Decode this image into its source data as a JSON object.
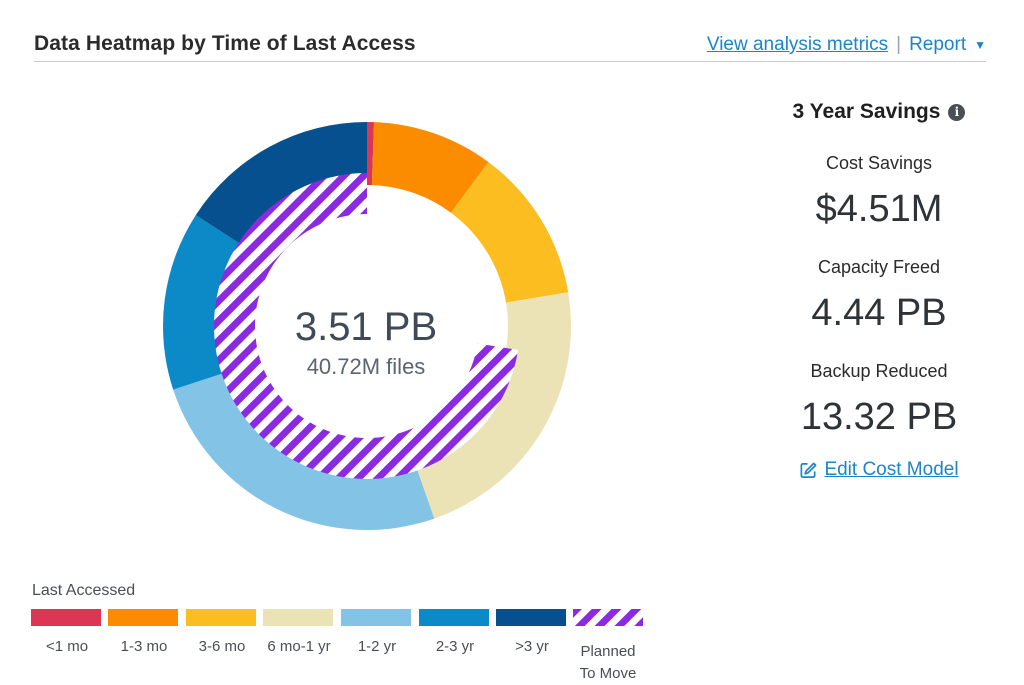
{
  "header": {
    "title": "Data Heatmap by Time of Last Access",
    "view_metrics_link": "View analysis metrics",
    "separator": "|",
    "report_label": "Report"
  },
  "chart_data": {
    "type": "donut",
    "center_value": "3.51 PB",
    "center_subtext": "40.72M files",
    "legend_title": "Last Accessed",
    "series": [
      {
        "name": "<1 mo",
        "value": 0.55,
        "color": "#dc3654"
      },
      {
        "name": "1-3 mo",
        "value": 9.6,
        "color": "#fb8c00"
      },
      {
        "name": "3-6 mo",
        "value": 12.2,
        "color": "#fbbd1f"
      },
      {
        "name": "6 mo-1 yr",
        "value": 22.3,
        "color": "#ebe3b5"
      },
      {
        "name": "1-2 yr",
        "value": 25.3,
        "color": "#82c3e6"
      },
      {
        "name": "2-3 yr",
        "value": 14.2,
        "color": "#0b8ac7"
      },
      {
        "name": ">3 yr",
        "value": 15.85,
        "color": "#06508f"
      }
    ],
    "planned_to_move": {
      "name": "Planned To Move",
      "value": 72.5,
      "color": "#8a2be2"
    }
  },
  "savings": {
    "title": "3 Year Savings",
    "info_icon": "info-icon",
    "metrics": [
      {
        "label": "Cost Savings",
        "value": "$4.51M"
      },
      {
        "label": "Capacity Freed",
        "value": "4.44 PB"
      },
      {
        "label": "Backup Reduced",
        "value": "13.32 PB"
      }
    ],
    "edit_link": "Edit Cost Model",
    "edit_icon": "edit-icon"
  },
  "legend": {
    "items": [
      {
        "label": "<1 mo",
        "color": "#dc3654"
      },
      {
        "label": "1-3 mo",
        "color": "#fb8c00"
      },
      {
        "label": "3-6 mo",
        "color": "#fbbd1f"
      },
      {
        "label": "6 mo-1 yr",
        "color": "#ebe3b5"
      },
      {
        "label": "1-2 yr",
        "color": "#82c3e6"
      },
      {
        "label": "2-3 yr",
        "color": "#0b8ac7"
      },
      {
        "label": ">3 yr",
        "color": "#06508f"
      }
    ],
    "planned_label_line1": "Planned",
    "planned_label_line2": "To Move"
  }
}
